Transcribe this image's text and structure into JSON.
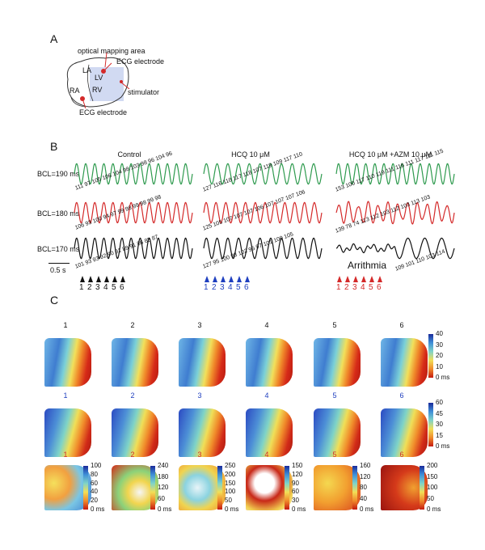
{
  "panel_a": {
    "letter": "A",
    "labels": {
      "optical": "optical mapping area",
      "ecg_top": "ECG electrode",
      "la": "LA",
      "lv": "LV",
      "ra": "RA",
      "rv": "RV",
      "stimulator": "stimulator",
      "ecg_bottom": "ECG electrode"
    }
  },
  "panel_b": {
    "letter": "B",
    "columns": [
      {
        "title": "Control",
        "color": "#111111"
      },
      {
        "title": "HCQ 10 μM",
        "color": "#1f3fbf"
      },
      {
        "title": "HCQ 10 μM +AZM 10 μM",
        "color": "#d42a2a"
      }
    ],
    "rows": [
      {
        "label": "BCL=190 ms",
        "color": "#2e9a4e",
        "values": [
          "111 97 105 106 104 98 103 98 96 104 96",
          "127 116 118 117 118 107 119 109 117 110",
          "153 100 117 110 119 111 116 111 117 111 115"
        ]
      },
      {
        "label": "BCL=180 ms",
        "color": "#d42a2a",
        "values": [
          "106 93 100 94 97 99 98 99 98 99 98",
          "125 105 107 107 107 106 107 107 107 106",
          "139 78 74 113 112 103 112 103 113 103"
        ]
      },
      {
        "label": "BCL=170 ms",
        "color": "#111111",
        "values": [
          "101 93 93 92 90 91 89 91 86 85 87",
          "127 95 100 98 102 95 97 101 100 105",
          "109 101 110 103 114"
        ]
      }
    ],
    "scale_bar": "0.5 s",
    "arrhythmia": "Arrithmia",
    "arrow_numbers": [
      "1",
      "2",
      "3",
      "4",
      "5",
      "6"
    ]
  },
  "panel_c": {
    "letter": "C",
    "row_labels": [
      {
        "numbers": [
          "1",
          "2",
          "3",
          "4",
          "5",
          "6"
        ],
        "color": "#111111"
      },
      {
        "numbers": [
          "1",
          "2",
          "3",
          "4",
          "5",
          "6"
        ],
        "color": "#1f3fbf"
      },
      {
        "numbers": [
          "1",
          "2",
          "3",
          "4",
          "5",
          "6"
        ],
        "color": "#d42a2a"
      }
    ],
    "colorbar_row1": [
      "40",
      "30",
      "20",
      "10",
      "0 ms"
    ],
    "colorbar_row2": [
      "60",
      "45",
      "30",
      "15",
      "0 ms"
    ],
    "colorbars_row3": [
      [
        "100",
        "80",
        "60",
        "40",
        "20",
        "0 ms"
      ],
      [
        "240",
        "180",
        "120",
        "60",
        "0 ms"
      ],
      [
        "250",
        "200",
        "150",
        "100",
        "50",
        "0 ms"
      ],
      [
        "150",
        "120",
        "90",
        "60",
        "30",
        "0 ms"
      ],
      [
        "160",
        "120",
        "80",
        "40",
        "0 ms"
      ],
      [
        "200",
        "150",
        "100",
        "50",
        "0 ms"
      ]
    ]
  }
}
